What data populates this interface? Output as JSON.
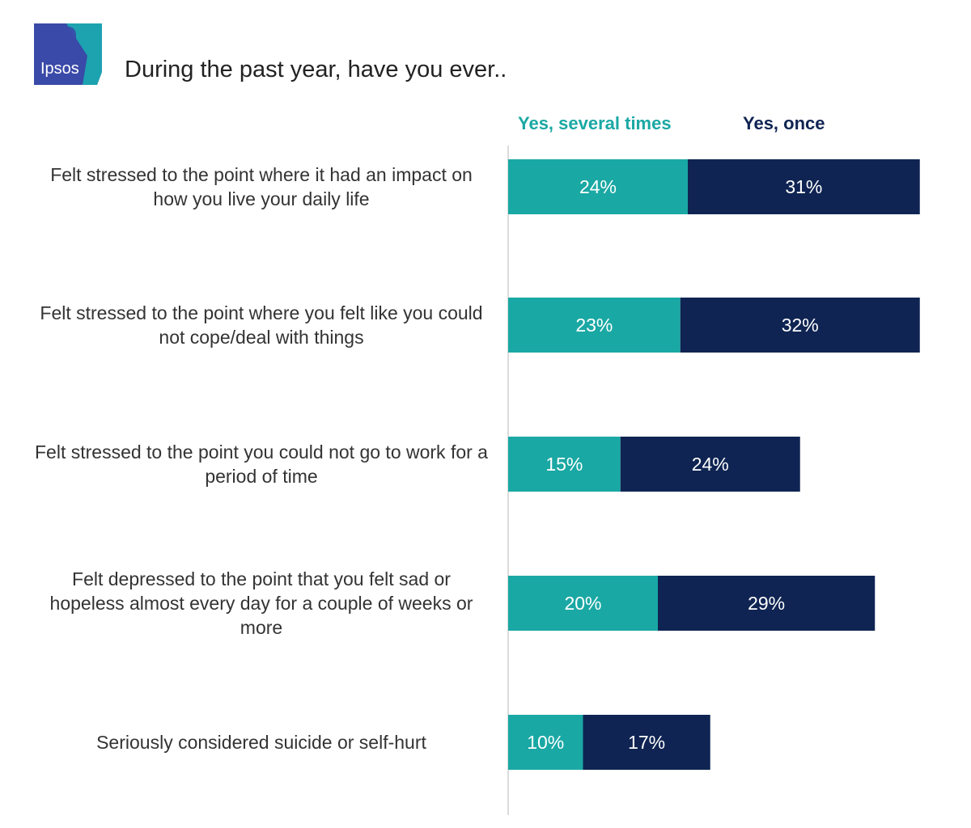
{
  "brand": {
    "logo_text": "Ipsos"
  },
  "colors": {
    "several": "#1aa8a4",
    "once": "#0f2452",
    "axis": "#dcdcdc",
    "logo_bg": "#3a4aa8",
    "logo_accent": "#19b1b1"
  },
  "chart_data": {
    "type": "bar",
    "orientation": "horizontal",
    "stacked": true,
    "title": "During the past year, have you ever..",
    "categories": [
      "Felt stressed to the point where it had an impact on how you live your daily life",
      "Felt stressed to the point where you felt like you could not cope/deal with things",
      "Felt stressed to the point you could not go to work for a period of time",
      "Felt depressed to the point that you felt sad or hopeless almost every day for a couple of weeks or more",
      "Seriously considered suicide or self-hurt"
    ],
    "series": [
      {
        "name": "Yes, several times",
        "values": [
          24,
          23,
          15,
          20,
          10
        ],
        "labels": [
          "24%",
          "23%",
          "15%",
          "20%",
          "10%"
        ]
      },
      {
        "name": "Yes, once",
        "values": [
          31,
          32,
          24,
          29,
          17
        ],
        "labels": [
          "31%",
          "32%",
          "24%",
          "29%",
          "17%"
        ]
      }
    ],
    "unit": "%",
    "xlabel": "",
    "ylabel": "",
    "legend": "top"
  }
}
